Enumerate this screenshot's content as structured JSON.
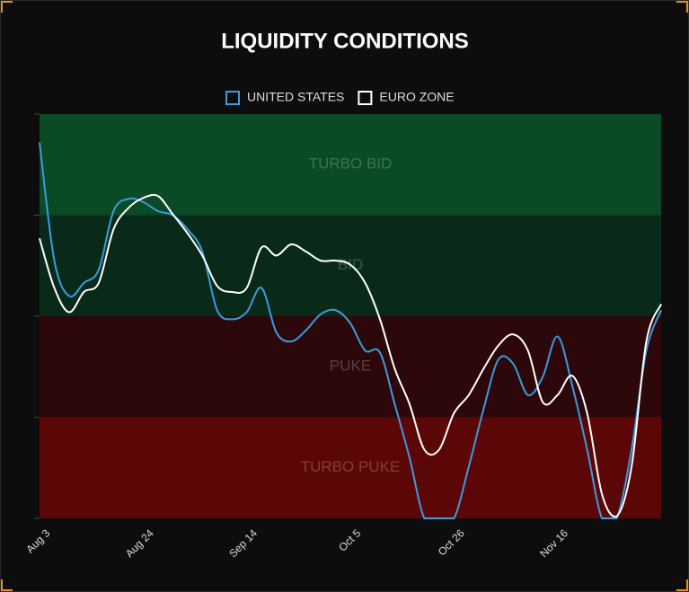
{
  "chart_data": {
    "type": "line",
    "title": "LIQUIDITY CONDITIONS",
    "categories": [
      "Aug 3",
      null,
      null,
      null,
      null,
      null,
      null,
      "Aug 24",
      null,
      null,
      null,
      null,
      null,
      null,
      "Sep 14",
      null,
      null,
      null,
      null,
      null,
      null,
      "Oct 5",
      null,
      null,
      null,
      null,
      null,
      null,
      "Oct 26",
      null,
      null,
      null,
      null,
      null,
      null,
      "Nov 16",
      null,
      null,
      null,
      null,
      null,
      null,
      null
    ],
    "series": [
      {
        "name": "UNITED STATES",
        "color": "#3b9be0",
        "values": [
          3.72,
          2.55,
          2.2,
          2.33,
          2.46,
          3.04,
          3.16,
          3.13,
          3.04,
          3.0,
          2.86,
          2.64,
          2.06,
          1.97,
          2.04,
          2.28,
          1.84,
          1.75,
          1.86,
          2.02,
          2.06,
          1.93,
          1.66,
          1.64,
          1.13,
          0.6,
          0,
          0,
          0,
          0.51,
          1.08,
          1.57,
          1.53,
          1.22,
          1.4,
          1.8,
          1.31,
          0.68,
          0,
          0,
          0.68,
          1.66,
          2.06
        ]
      },
      {
        "name": "EURO ZONE",
        "color": "#ffffff",
        "values": [
          2.77,
          2.28,
          2.04,
          2.24,
          2.33,
          2.86,
          3.07,
          3.17,
          3.19,
          3.01,
          2.82,
          2.6,
          2.3,
          2.24,
          2.28,
          2.68,
          2.6,
          2.71,
          2.64,
          2.55,
          2.55,
          2.51,
          2.33,
          1.97,
          1.48,
          1.13,
          0.68,
          0.68,
          1.04,
          1.22,
          1.48,
          1.71,
          1.82,
          1.66,
          1.15,
          1.22,
          1.41,
          1.04,
          0.24,
          0.02,
          0.51,
          1.75,
          2.12
        ]
      }
    ],
    "zones": [
      {
        "label": "TURBO BID",
        "from": 3,
        "to": 4,
        "color": "#0a4a24"
      },
      {
        "label": "BID",
        "from": 2,
        "to": 3,
        "color": "#0a2a19"
      },
      {
        "label": "PUKE",
        "from": 1,
        "to": 2,
        "color": "#2c080b"
      },
      {
        "label": "TURBO PUKE",
        "from": 0,
        "to": 1,
        "color": "#5c0707"
      }
    ],
    "ylim": [
      0,
      4
    ],
    "yticks": [
      0,
      1,
      2,
      3,
      4
    ]
  }
}
